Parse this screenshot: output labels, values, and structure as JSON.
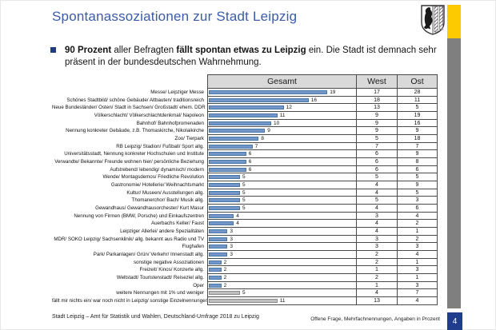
{
  "header": {
    "title": "Spontanassoziationen zur Stadt Leipzig",
    "crest_icon": "leipzig-coat-of-arms"
  },
  "bullet": {
    "segments": [
      {
        "t": "90 Prozent",
        "b": true
      },
      {
        "t": " aller Befragten ",
        "b": false
      },
      {
        "t": "fällt spontan etwas zu Leipzig",
        "b": true
      },
      {
        "t": " ein. Die Stadt ist demnach sehr präsent in der bundesdeutschen Wahrnehmung.",
        "b": false
      }
    ]
  },
  "chart_data": {
    "type": "bar",
    "orientation": "horizontal",
    "title": "Spontanassoziationen zur Stadt Leipzig",
    "unit": "Prozent",
    "columns": [
      "Gesamt",
      "West",
      "Ost"
    ],
    "legend_position": "table-header",
    "grid": "row-lines",
    "xlim": [
      0,
      23
    ],
    "bar_color": "#7396c8",
    "bar_border": "#4a76a8",
    "gray_bar_color": "#bfbfbf",
    "gray_bar_border": "#8c8c8c",
    "rows": [
      {
        "label": "Messe/ Leipziger Messe",
        "gesamt": 19,
        "west": 17,
        "ost": 28,
        "gray": false
      },
      {
        "label": "Schönes Stadtbild/ schöne Gebäude/ Altbauten/ traditionsreich",
        "gesamt": 16,
        "west": 18,
        "ost": 11,
        "gray": false
      },
      {
        "label": "Neue Bundesländer/ Osten/ Stadt in Sachsen/ Großstadt/ ehem. DDR",
        "gesamt": 12,
        "west": 13,
        "ost": 5,
        "gray": false
      },
      {
        "label": "Völkerschlacht/ Völkerschlachtdenkmal/ Napoleon",
        "gesamt": 11,
        "west": 9,
        "ost": 19,
        "gray": false
      },
      {
        "label": "Bahnhof/ Bahnhofpromenaden",
        "gesamt": 10,
        "west": 9,
        "ost": 16,
        "gray": false
      },
      {
        "label": "Nennung konkreter Gebäude, z.B. Thomaskirche, Nikolaikirche",
        "gesamt": 9,
        "west": 9,
        "ost": 9,
        "gray": false
      },
      {
        "label": "Zoo/ Tierpark",
        "gesamt": 8,
        "west": 5,
        "ost": 18,
        "gray": false
      },
      {
        "label": "RB Leipzig/ Stadion/ Fußball/ Sport allg.",
        "gesamt": 7,
        "west": 7,
        "ost": 7,
        "gray": false
      },
      {
        "label": "Universitätsstadt, Nennung konkreter Hochschulen und Institute",
        "gesamt": 6,
        "west": 6,
        "ost": 9,
        "gray": false
      },
      {
        "label": "Verwandte/ Bekannte/ Freunde wohnen hier/ persönliche Beziehung",
        "gesamt": 6,
        "west": 6,
        "ost": 8,
        "gray": false
      },
      {
        "label": "Aufstrebend/ lebendig/ dynamisch/ modern",
        "gesamt": 6,
        "west": 6,
        "ost": 6,
        "gray": false
      },
      {
        "label": "Wende/ Montagsdemos/ Friedliche Revolution",
        "gesamt": 5,
        "west": 5,
        "ost": 5,
        "gray": false
      },
      {
        "label": "Gastronomie/ Hotellerie/ Weihnachtsmarkt",
        "gesamt": 5,
        "west": 4,
        "ost": 9,
        "gray": false
      },
      {
        "label": "Kultur/ Museen/ Ausstellungen allg.",
        "gesamt": 5,
        "west": 4,
        "ost": 5,
        "gray": false
      },
      {
        "label": "Thomanerchor/ Bach/ Musik allg.",
        "gesamt": 5,
        "west": 5,
        "ost": 3,
        "gray": false
      },
      {
        "label": "Gewandhaus/ Gewandhausorchester/ Kurt Masur",
        "gesamt": 5,
        "west": 4,
        "ost": 6,
        "gray": false
      },
      {
        "label": "Nennung von Firmen (BMW, Porsche) und Einkaufszentren",
        "gesamt": 4,
        "west": 3,
        "ost": 4,
        "gray": false
      },
      {
        "label": "Auerbachs Keller/ Faust",
        "gesamt": 4,
        "west": 4,
        "ost": 2,
        "gray": false
      },
      {
        "label": "Leipziger Allerlei/ andere Spezialitäten",
        "gesamt": 3,
        "west": 4,
        "ost": 1,
        "gray": false
      },
      {
        "label": "MDR/ SOKO Leipzig/ Sachsenklinik/ allg. bekannt aus Radio und TV",
        "gesamt": 3,
        "west": 3,
        "ost": 2,
        "gray": false
      },
      {
        "label": "Flughafen",
        "gesamt": 3,
        "west": 3,
        "ost": 3,
        "gray": false
      },
      {
        "label": "Park/ Parkanlagen/ Grün/ Verkehr/ Innenstadt allg.",
        "gesamt": 3,
        "west": 2,
        "ost": 4,
        "gray": false
      },
      {
        "label": "sonstige negative Assoziationen",
        "gesamt": 2,
        "west": 2,
        "ost": 1,
        "gray": false
      },
      {
        "label": "Freizeit/ Kinos/ Konzerte allg.",
        "gesamt": 2,
        "west": 1,
        "ost": 3,
        "gray": false
      },
      {
        "label": "Weltstadt/ Touristenstadt/ Reiseziel allg.",
        "gesamt": 2,
        "west": 2,
        "ost": 1,
        "gray": false
      },
      {
        "label": "Oper",
        "gesamt": 2,
        "west": 1,
        "ost": 3,
        "gray": false
      },
      {
        "label": "weitere Nennungen mit 1% und weniger",
        "gesamt": 5,
        "west": 4,
        "ost": 7,
        "gray": true
      },
      {
        "label": "fällt mir nichts ein/ war noch nicht in Leipzig/ sonstige Einzelnennungen",
        "gesamt": 11,
        "west": 13,
        "ost": 4,
        "gray": true
      }
    ]
  },
  "footer": {
    "left": "Stadt Leipzig – Amt für Statistik und Wahlen, Deutschland-Umfrage 2018 zu Leipzig",
    "right": "Offene Frage, Mehrfachnennungen, Angaben in Prozent",
    "page": "4"
  },
  "colors": {
    "title": "#3b5ca8",
    "bullet_square": "#1f3a7d",
    "rail_yellow": "#fdc900",
    "rail_gray": "#7f7f7f",
    "page_box_blue": "#1f3d8c",
    "table_header_fill": "#d9d9d9"
  }
}
